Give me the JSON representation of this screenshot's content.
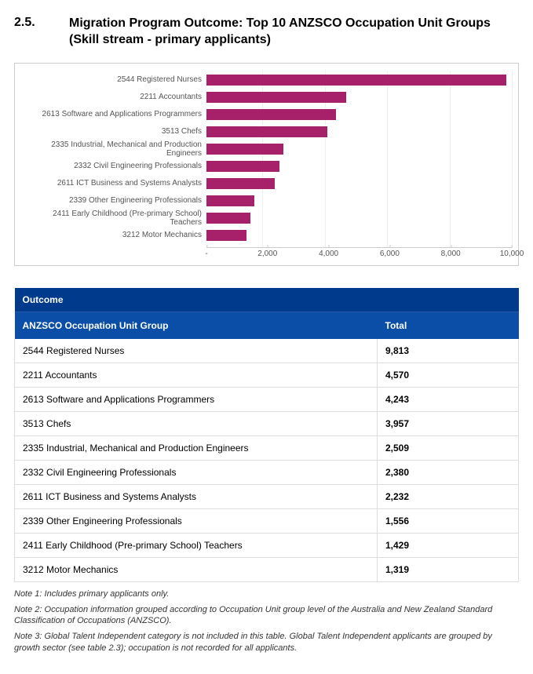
{
  "heading": {
    "number": "2.5.",
    "title": "Migration Program Outcome: Top 10 ANZSCO Occupation Unit Groups (Skill stream - primary applicants)"
  },
  "chart": {
    "type": "bar-horizontal",
    "bar_color": "#a6206a",
    "background_color": "#ffffff",
    "grid_color": "#eeeeee",
    "axis_color": "#cccccc",
    "label_fontsize": 10,
    "label_color": "#555555",
    "xlim": [
      0,
      10000
    ],
    "xtick_step": 2000,
    "xticks": [
      "-",
      "2,000",
      "4,000",
      "6,000",
      "8,000",
      "10,000"
    ],
    "categories": [
      "2544 Registered Nurses",
      "2211 Accountants",
      "2613 Software and Applications Programmers",
      "3513 Chefs",
      "2335 Industrial, Mechanical and Production Engineers",
      "2332 Civil Engineering Professionals",
      "2611 ICT Business and Systems Analysts",
      "2339 Other Engineering Professionals",
      "2411 Early Childhood (Pre-primary School) Teachers",
      "3212 Motor Mechanics"
    ],
    "values": [
      9813,
      4570,
      4243,
      3957,
      2509,
      2380,
      2232,
      1556,
      1429,
      1319
    ]
  },
  "table": {
    "outcome_header": "Outcome",
    "col_group": "ANZSCO Occupation Unit Group",
    "col_total": "Total",
    "rows": [
      {
        "group": "2544 Registered Nurses",
        "total": "9,813"
      },
      {
        "group": "2211 Accountants",
        "total": "4,570"
      },
      {
        "group": "2613 Software and Applications Programmers",
        "total": "4,243"
      },
      {
        "group": "3513 Chefs",
        "total": "3,957"
      },
      {
        "group": "2335 Industrial, Mechanical and Production Engineers",
        "total": "2,509"
      },
      {
        "group": "2332 Civil Engineering Professionals",
        "total": "2,380"
      },
      {
        "group": "2611 ICT Business and Systems Analysts",
        "total": "2,232"
      },
      {
        "group": "2339 Other Engineering Professionals",
        "total": "1,556"
      },
      {
        "group": "2411 Early Childhood (Pre-primary School) Teachers",
        "total": "1,429"
      },
      {
        "group": "3212 Motor Mechanics",
        "total": "1,319"
      }
    ]
  },
  "notes": {
    "n1": "Note 1: Includes primary applicants only.",
    "n2": "Note 2: Occupation information grouped according to Occupation Unit group level of the Australia and New Zealand Standard Classification of Occupations (ANZSCO).",
    "n3": "Note 3: Global Talent Independent category is not included in this table. Global Talent Independent applicants are grouped by growth sector (see table 2.3); occupation is not recorded for all applicants."
  }
}
